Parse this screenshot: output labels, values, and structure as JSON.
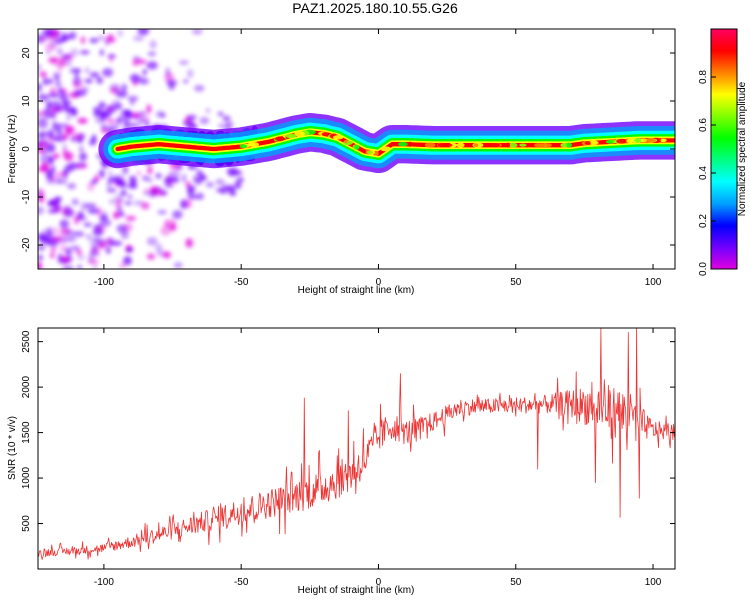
{
  "figure": {
    "title": "PAZ1.2025.180.10.55.G26"
  },
  "chart_data": [
    {
      "type": "heatmap",
      "xlabel": "Height of straight line (km)",
      "ylabel": "Frequency (Hz)",
      "xlim": [
        -124,
        108
      ],
      "ylim": [
        -25,
        25
      ],
      "xticks": [
        -100,
        -50,
        0,
        50,
        100
      ],
      "yticks": [
        -20,
        -10,
        0,
        10,
        20
      ],
      "grid": false,
      "colorbar": {
        "label": "Normalized spectral amplitude",
        "range": [
          0,
          1
        ],
        "ticks": [
          "0.0",
          "0.2",
          "0.4",
          "0.6",
          "0.8"
        ],
        "colormap": [
          "#e000e0",
          "#7000ff",
          "#0000ff",
          "#00a0ff",
          "#00ffff",
          "#00ff80",
          "#00ff00",
          "#80ff00",
          "#ffff00",
          "#ff8000",
          "#ff0000",
          "#ff0060"
        ]
      },
      "ridge": {
        "x": [
          -95,
          -90,
          -80,
          -70,
          -60,
          -50,
          -40,
          -30,
          -25,
          -20,
          -15,
          -10,
          -5,
          0,
          5,
          10,
          20,
          30,
          50,
          70,
          75,
          85,
          95,
          100,
          108
        ],
        "y": [
          0,
          0.5,
          1,
          0.5,
          0,
          0.5,
          1.5,
          3,
          3.5,
          3.2,
          2.5,
          1,
          -0.5,
          -1,
          1,
          1,
          0.8,
          0.8,
          0.8,
          0.8,
          1.2,
          1.5,
          1.8,
          1.8,
          1.8
        ]
      }
    },
    {
      "type": "line",
      "xlabel": "Height of straight line (km)",
      "ylabel": "SNR (10 * v/v)",
      "xlim": [
        -124,
        108
      ],
      "ylim": [
        0,
        2650
      ],
      "xticks": [
        -100,
        -50,
        0,
        50,
        100
      ],
      "yticks": [
        500,
        1000,
        1500,
        2000,
        2500
      ],
      "grid": false,
      "series": [
        {
          "color": "#ee3333",
          "trend": {
            "x": [
              -124,
              -110,
              -100,
              -90,
              -80,
              -70,
              -60,
              -50,
              -40,
              -30,
              -20,
              -10,
              -5,
              0,
              5,
              10,
              15,
              20,
              25,
              30,
              40,
              50,
              60,
              70,
              80,
              90,
              100,
              108
            ],
            "y": [
              180,
              200,
              230,
              300,
              380,
              460,
              550,
              640,
              720,
              800,
              900,
              1050,
              1200,
              1450,
              1580,
              1500,
              1550,
              1620,
              1700,
              1780,
              1790,
              1800,
              1810,
              1820,
              1780,
              1700,
              1530,
              1500
            ]
          },
          "noise": {
            "x": [
              -124,
              -100,
              -60,
              -30,
              -10,
              0,
              20,
              40,
              60,
              70,
              80,
              90,
              100,
              108
            ],
            "amplitude": [
              60,
              70,
              180,
              260,
              300,
              250,
              150,
              120,
              140,
              220,
              380,
              420,
              150,
              120
            ]
          },
          "spikes": [
            {
              "x": -27,
              "y": 1880
            },
            {
              "x": -11,
              "y": 1740
            },
            {
              "x": 8,
              "y": 2150
            },
            {
              "x": 58,
              "y": 1100
            },
            {
              "x": 72,
              "y": 2170
            },
            {
              "x": 79,
              "y": 950
            },
            {
              "x": 81,
              "y": 2650
            },
            {
              "x": 87,
              "y": 1700
            },
            {
              "x": 88,
              "y": 570
            },
            {
              "x": 91,
              "y": 2600
            },
            {
              "x": 94,
              "y": 2650
            },
            {
              "x": 95,
              "y": 780
            }
          ]
        }
      ]
    }
  ]
}
